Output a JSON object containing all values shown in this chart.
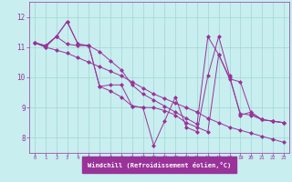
{
  "xlabel": "Windchill (Refroidissement éolien,°C)",
  "background_color": "#c8eef0",
  "grid_color": "#a0d8d0",
  "line_color": "#993399",
  "axis_label_color": "#993399",
  "xlim": [
    -0.5,
    23.5
  ],
  "ylim": [
    7.5,
    12.5
  ],
  "xticks": [
    0,
    1,
    2,
    3,
    4,
    5,
    6,
    7,
    8,
    9,
    10,
    11,
    12,
    13,
    14,
    15,
    16,
    17,
    18,
    19,
    20,
    21,
    22,
    23
  ],
  "yticks": [
    8,
    9,
    10,
    11,
    12
  ],
  "series": [
    [
      11.15,
      11.05,
      11.35,
      11.85,
      11.1,
      11.05,
      9.7,
      9.75,
      9.75,
      9.05,
      9.0,
      7.75,
      8.55,
      9.35,
      8.35,
      8.2,
      10.05,
      11.35,
      10.05,
      8.75,
      8.85,
      8.6,
      8.55,
      8.5
    ],
    [
      11.15,
      11.05,
      11.35,
      11.1,
      11.05,
      11.05,
      9.7,
      9.55,
      9.35,
      9.05,
      9.0,
      9.0,
      8.9,
      8.75,
      8.5,
      8.35,
      8.2,
      10.75,
      10.0,
      8.8,
      8.75,
      8.6,
      8.55,
      8.5
    ],
    [
      11.15,
      11.0,
      10.9,
      10.8,
      10.65,
      10.5,
      10.35,
      10.2,
      10.05,
      9.85,
      9.65,
      9.45,
      9.3,
      9.15,
      9.0,
      8.85,
      8.65,
      8.5,
      8.35,
      8.25,
      8.15,
      8.05,
      7.95,
      7.85
    ],
    [
      11.15,
      11.0,
      11.35,
      11.85,
      11.1,
      11.05,
      10.85,
      10.55,
      10.25,
      9.75,
      9.45,
      9.25,
      9.05,
      8.85,
      8.65,
      8.45,
      11.35,
      10.75,
      9.95,
      9.85,
      8.8,
      8.6,
      8.55,
      8.5
    ]
  ]
}
